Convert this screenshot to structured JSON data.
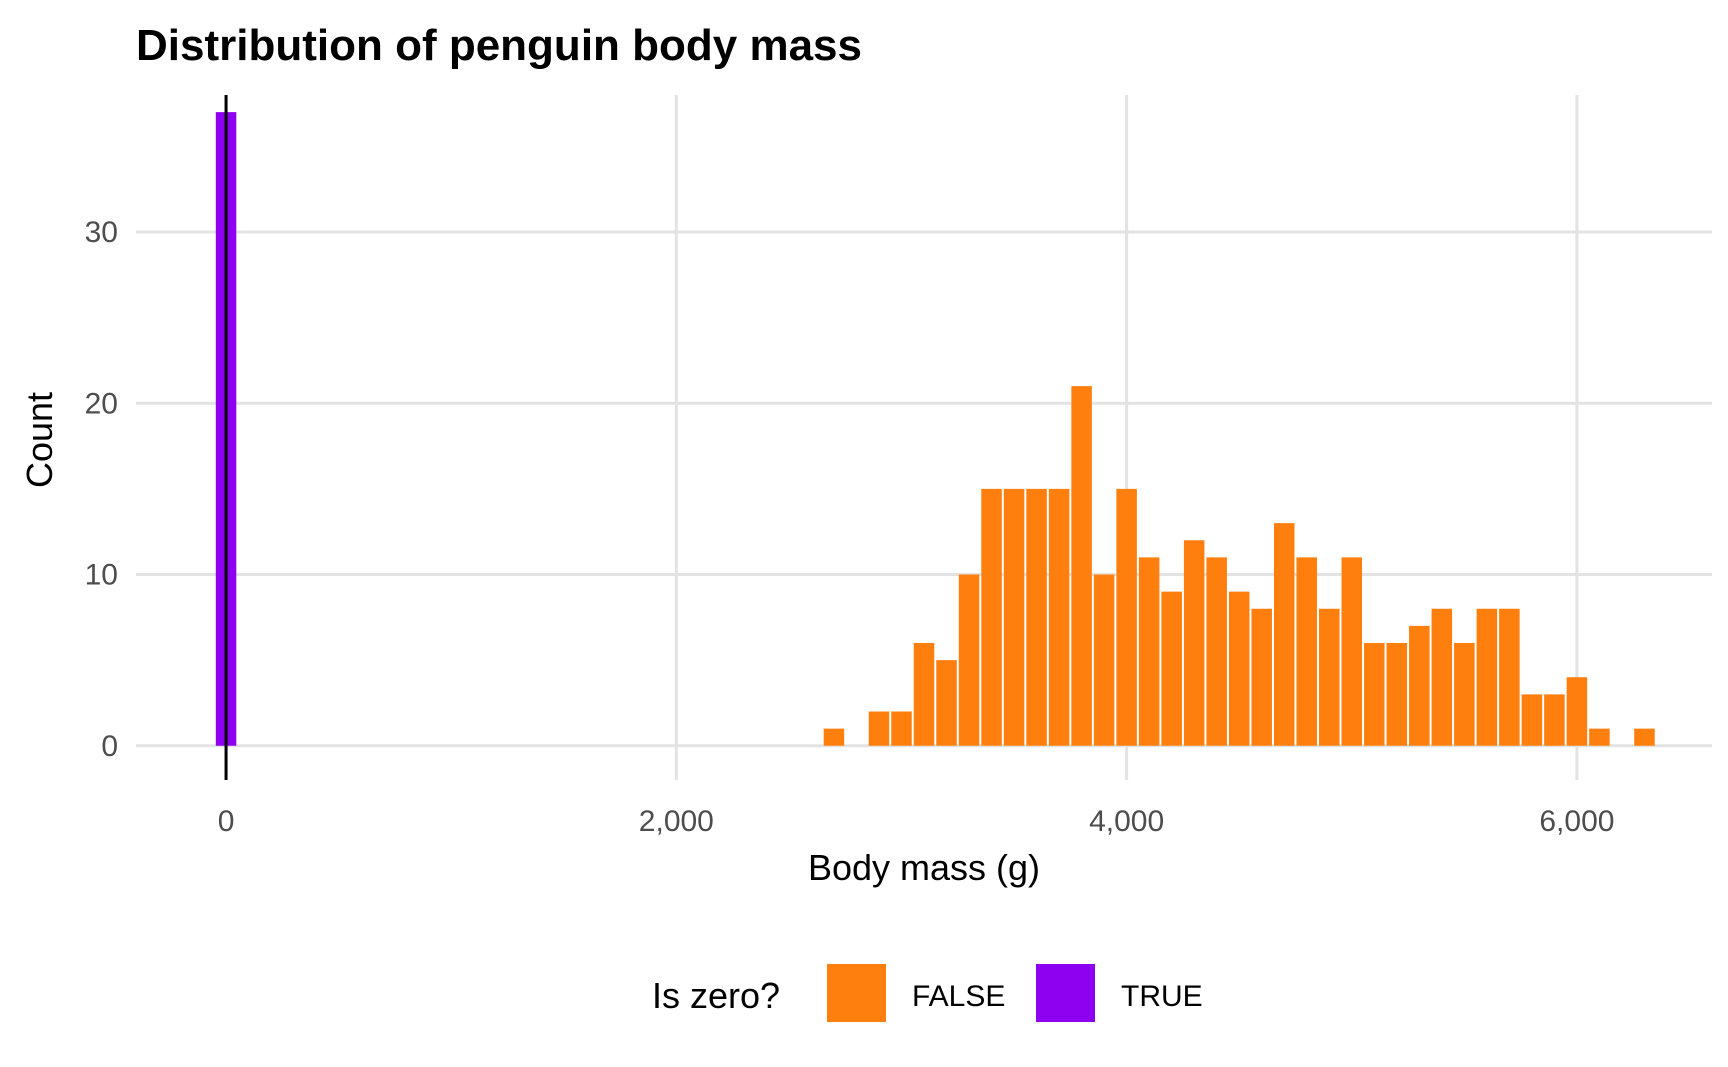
{
  "chart_data": {
    "type": "bar",
    "title": "Distribution of penguin body mass",
    "xlabel": "Body mass (g)",
    "ylabel": "Count",
    "xlim": [
      -400,
      6600
    ],
    "ylim": [
      -2,
      38
    ],
    "x_ticks": [
      0,
      2000,
      4000,
      6000
    ],
    "x_tick_labels": [
      "0",
      "2,000",
      "4,000",
      "6,000"
    ],
    "y_ticks": [
      0,
      10,
      20,
      30
    ],
    "y_tick_labels": [
      "0",
      "10",
      "20",
      "30"
    ],
    "bin_width": 100,
    "legend": {
      "title": "Is zero?",
      "position": "bottom"
    },
    "vline_x": 0,
    "series": [
      {
        "name": "FALSE",
        "color": "#FF7F0E",
        "bins": [
          {
            "x": 2700,
            "count": 1
          },
          {
            "x": 2900,
            "count": 2
          },
          {
            "x": 3000,
            "count": 2
          },
          {
            "x": 3100,
            "count": 6
          },
          {
            "x": 3200,
            "count": 5
          },
          {
            "x": 3300,
            "count": 10
          },
          {
            "x": 3400,
            "count": 15
          },
          {
            "x": 3500,
            "count": 15
          },
          {
            "x": 3600,
            "count": 15
          },
          {
            "x": 3700,
            "count": 15
          },
          {
            "x": 3800,
            "count": 21
          },
          {
            "x": 3900,
            "count": 10
          },
          {
            "x": 4000,
            "count": 15
          },
          {
            "x": 4100,
            "count": 11
          },
          {
            "x": 4200,
            "count": 9
          },
          {
            "x": 4300,
            "count": 12
          },
          {
            "x": 4400,
            "count": 11
          },
          {
            "x": 4500,
            "count": 9
          },
          {
            "x": 4600,
            "count": 8
          },
          {
            "x": 4700,
            "count": 13
          },
          {
            "x": 4800,
            "count": 11
          },
          {
            "x": 4900,
            "count": 8
          },
          {
            "x": 5000,
            "count": 11
          },
          {
            "x": 5100,
            "count": 6
          },
          {
            "x": 5200,
            "count": 6
          },
          {
            "x": 5300,
            "count": 7
          },
          {
            "x": 5400,
            "count": 8
          },
          {
            "x": 5500,
            "count": 6
          },
          {
            "x": 5600,
            "count": 8
          },
          {
            "x": 5700,
            "count": 8
          },
          {
            "x": 5800,
            "count": 3
          },
          {
            "x": 5900,
            "count": 3
          },
          {
            "x": 6000,
            "count": 4
          },
          {
            "x": 6100,
            "count": 1
          },
          {
            "x": 6300,
            "count": 1
          }
        ]
      },
      {
        "name": "TRUE",
        "color": "#8E00F0",
        "bins": [
          {
            "x": 0,
            "count": 37
          }
        ]
      }
    ]
  }
}
